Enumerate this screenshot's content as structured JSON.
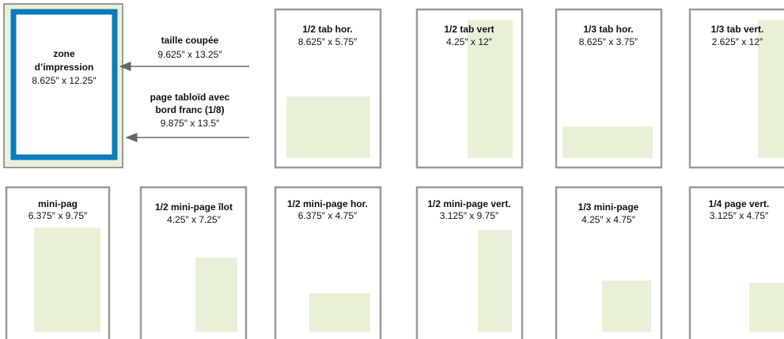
{
  "print_zone": {
    "title": "zone",
    "subtitle": "d’impression",
    "size": "8.625″ x 12.25″"
  },
  "annotations": [
    {
      "lines": [
        "taille coupée"
      ],
      "size": "9.625″ x 13.25″"
    },
    {
      "lines": [
        "page tabloïd avec",
        "bord franc (1/8)"
      ],
      "size": "9.875″ x 13.5″"
    }
  ],
  "formats": [
    {
      "title": "1/2 tab hor.",
      "size": "8.625″ x 5.75″"
    },
    {
      "title": "1/2 tab vert",
      "size": "4.25″ x 12″"
    },
    {
      "title": "1/3 tab hor.",
      "size": "8.625″ x 3.75″"
    },
    {
      "title": "1/3 tab vert.",
      "size": "2.625″ x 12″"
    },
    {
      "title": "mini-pag",
      "size": "6.375″ x 9.75″"
    },
    {
      "title": "1/2 mini-page îlot",
      "size": "4.25″ x 7.25″"
    },
    {
      "title": "1/2 mini-page hor.",
      "size": "6.375″ x 4.75″"
    },
    {
      "title": "1/2 mini-page vert.",
      "size": "3.125″ x 9.75″"
    },
    {
      "title": "1/3 mini-page",
      "size": "4.25″ x 4.75″"
    },
    {
      "title": "1/4 page vert.",
      "size": "3.125″ x 4.75″"
    }
  ]
}
